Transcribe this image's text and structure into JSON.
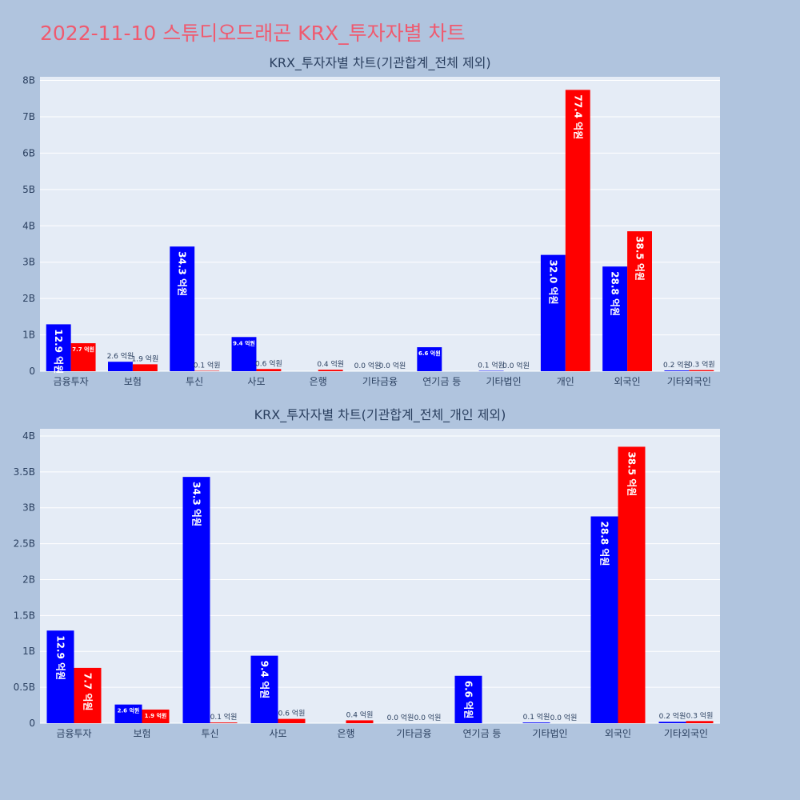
{
  "page_title": "2022-11-10 스튜디오드래곤 KRX_투자자별 차트",
  "colors": {
    "background": "#b0c4de",
    "plot_bg": "#e5ecf6",
    "buy": "#0000ff",
    "sell": "#ff0000",
    "title": "#ef5a6f"
  },
  "chart_data": [
    {
      "type": "bar",
      "title": "KRX_투자자별 차트(기관합계_전체 제외)",
      "categories": [
        "금융투자",
        "보험",
        "투신",
        "사모",
        "은행",
        "기타금융",
        "연기금 등",
        "기타법인",
        "개인",
        "외국인",
        "기타외국인"
      ],
      "ylim": [
        0,
        8100000000.0
      ],
      "yticks": [
        0,
        1000000000.0,
        2000000000.0,
        3000000000.0,
        4000000000.0,
        5000000000.0,
        6000000000.0,
        7000000000.0,
        8000000000.0
      ],
      "ytick_labels": [
        "0",
        "1B",
        "2B",
        "3B",
        "4B",
        "5B",
        "6B",
        "7B",
        "8B"
      ],
      "grid": true,
      "series": [
        {
          "color": "#0000ff",
          "values": [
            1290000000.0,
            260000000.0,
            3430000000.0,
            940000000.0,
            0,
            0.0,
            660000000.0,
            10000000.0,
            3200000000.0,
            2880000000.0,
            20000000.0
          ],
          "labels": [
            "12.9 억원",
            "2.6 억원",
            "34.3 억원",
            "9.4 억원",
            "",
            "0.0 억원",
            "6.6 억원",
            "0.1 억원",
            "32.0 억원",
            "28.8 억원",
            "0.2 억원"
          ]
        },
        {
          "color": "#ff0000",
          "values": [
            770000000.0,
            190000000.0,
            10000000.0,
            60000000.0,
            40000000.0,
            0.0,
            0,
            0.0,
            7740000000.0,
            3850000000.0,
            30000000.0
          ],
          "labels": [
            "7.7 억원",
            "1.9 억원",
            "0.1 억원",
            "0.6 억원",
            "0.4 억원",
            "0.0 억원",
            "",
            "0.0 억원",
            "77.4 억원",
            "38.5 억원",
            "0.3 억원"
          ]
        }
      ]
    },
    {
      "type": "bar",
      "title": "KRX_투자자별 차트(기관합계_전체_개인 제외)",
      "categories": [
        "금융투자",
        "보험",
        "투신",
        "사모",
        "은행",
        "기타금융",
        "연기금 등",
        "기타법인",
        "외국인",
        "기타외국인"
      ],
      "ylim": [
        0,
        4100000000.0
      ],
      "yticks": [
        0,
        500000000.0,
        1000000000.0,
        1500000000.0,
        2000000000.0,
        2500000000.0,
        3000000000.0,
        3500000000.0,
        4000000000.0
      ],
      "ytick_labels": [
        "0",
        "0.5B",
        "1B",
        "1.5B",
        "2B",
        "2.5B",
        "3B",
        "3.5B",
        "4B"
      ],
      "grid": true,
      "series": [
        {
          "color": "#0000ff",
          "values": [
            1290000000.0,
            260000000.0,
            3430000000.0,
            940000000.0,
            0,
            0.0,
            660000000.0,
            10000000.0,
            2880000000.0,
            20000000.0
          ],
          "labels": [
            "12.9 억원",
            "2.6 억원",
            "34.3 억원",
            "9.4 억원",
            "",
            "0.0 억원",
            "6.6 억원",
            "0.1 억원",
            "28.8 억원",
            "0.2 억원"
          ]
        },
        {
          "color": "#ff0000",
          "values": [
            770000000.0,
            190000000.0,
            10000000.0,
            60000000.0,
            40000000.0,
            0.0,
            0,
            0.0,
            3850000000.0,
            30000000.0
          ],
          "labels": [
            "7.7 억원",
            "1.9 억원",
            "0.1 억원",
            "0.6 억원",
            "0.4 억원",
            "0.0 억원",
            "",
            "0.0 억원",
            "38.5 억원",
            "0.3 억원"
          ]
        }
      ]
    }
  ]
}
